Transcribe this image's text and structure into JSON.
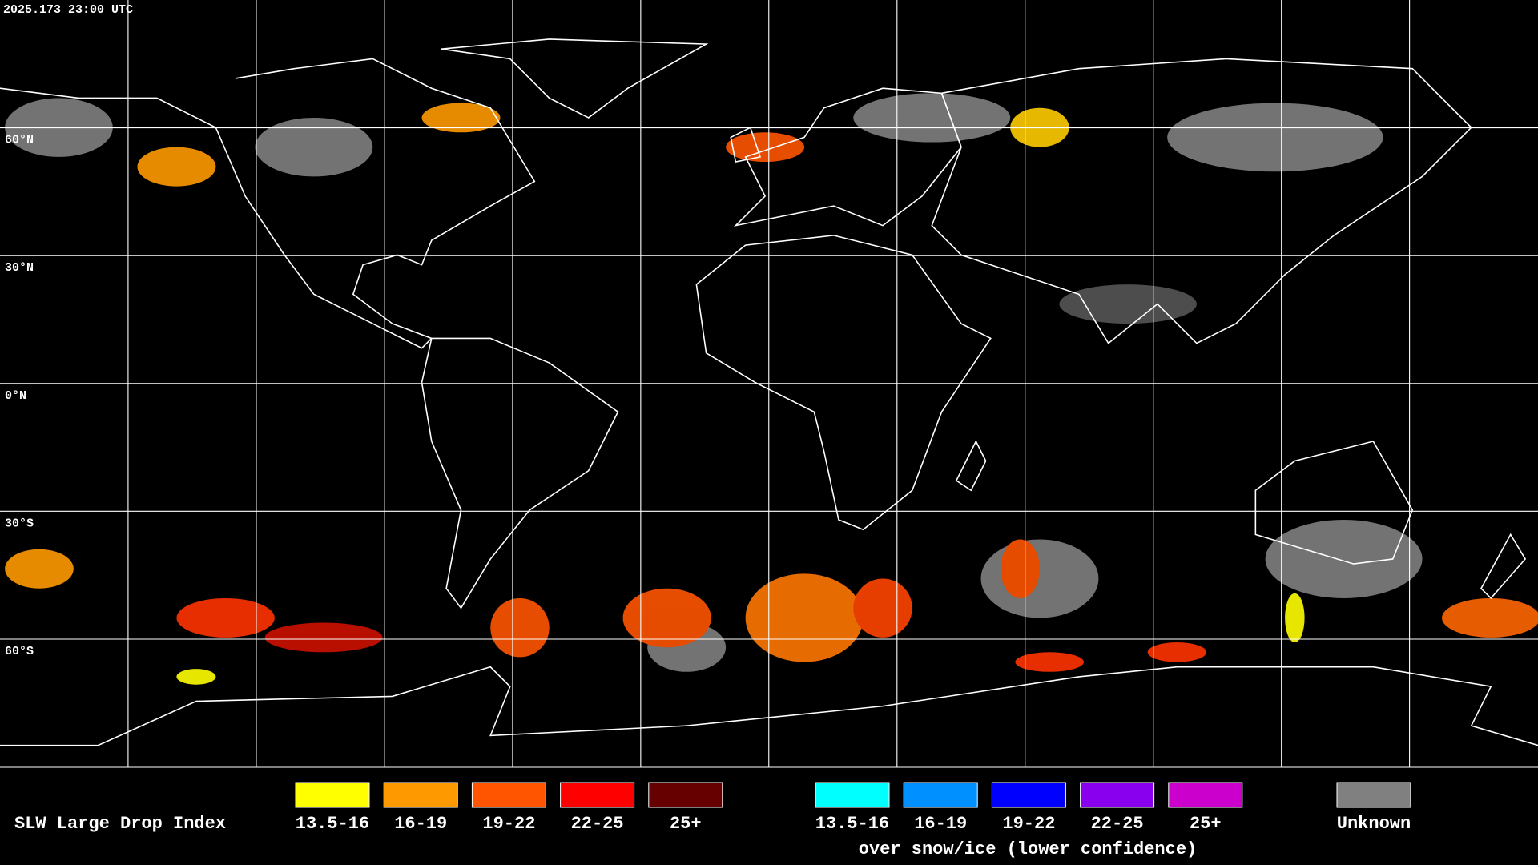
{
  "timestamp": "2025.173 23:00 UTC",
  "grid_labels": [
    "60°N",
    "30°N",
    "0°N",
    "30°S",
    "60°S"
  ],
  "legend": {
    "title": "SLW Large Drop Index",
    "items": [
      {
        "label": "13.5-16",
        "color": "#ffff00"
      },
      {
        "label": "16-19",
        "color": "#ff9900"
      },
      {
        "label": "19-22",
        "color": "#ff5500"
      },
      {
        "label": "22-25",
        "color": "#ff0000"
      },
      {
        "label": "25+",
        "color": "#660000"
      }
    ],
    "snow_ice_items": [
      {
        "label": "13.5-16",
        "color": "#00ffff"
      },
      {
        "label": "16-19",
        "color": "#0090ff"
      },
      {
        "label": "19-22",
        "color": "#0000ff"
      },
      {
        "label": "22-25",
        "color": "#8800ee"
      },
      {
        "label": "25+",
        "color": "#cc00cc"
      }
    ],
    "snow_ice_label": "over snow/ice (lower confidence)",
    "unknown": {
      "label": "Unknown",
      "color": "#808080"
    }
  }
}
